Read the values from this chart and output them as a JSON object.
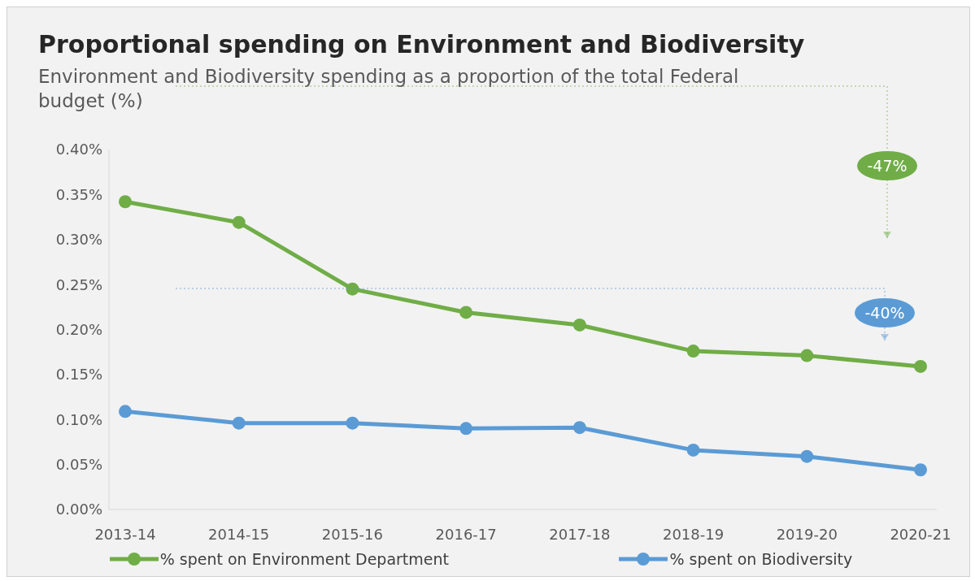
{
  "chart_data": {
    "type": "line",
    "title": "Proportional spending on Environment and Biodiversity",
    "subtitle": "Environment and Biodiversity spending as a proportion of the total Federal budget (%)",
    "categories": [
      "2013-14",
      "2014-15",
      "2015-16",
      "2016-17",
      "2017-18",
      "2018-19",
      "2019-20",
      "2020-21"
    ],
    "series": [
      {
        "name": "% spent on Environment Department",
        "color": "#70ad47",
        "values": [
          0.342,
          0.319,
          0.245,
          0.219,
          0.205,
          0.176,
          0.171,
          0.159
        ]
      },
      {
        "name": "% spent on Biodiversity",
        "color": "#5b9bd5",
        "values": [
          0.109,
          0.096,
          0.096,
          0.09,
          0.091,
          0.066,
          0.059,
          0.044
        ]
      }
    ],
    "annotations": [
      "-47%",
      "-40%"
    ],
    "ylim": [
      0,
      0.4
    ],
    "yticks": [
      {
        "value": 0,
        "label": "0.00%"
      },
      {
        "value": 0.05,
        "label": "0.05%"
      },
      {
        "value": 0.1,
        "label": "0.10%"
      },
      {
        "value": 0.15,
        "label": "0.15%"
      },
      {
        "value": 0.2,
        "label": "0.20%"
      },
      {
        "value": 0.25,
        "label": "0.25%"
      },
      {
        "value": 0.3,
        "label": "0.30%"
      },
      {
        "value": 0.35,
        "label": "0.35%"
      },
      {
        "value": 0.4,
        "label": "0.40%"
      }
    ],
    "grid": false,
    "legend": "bottom",
    "marker": "circle",
    "line_style": "solid"
  }
}
